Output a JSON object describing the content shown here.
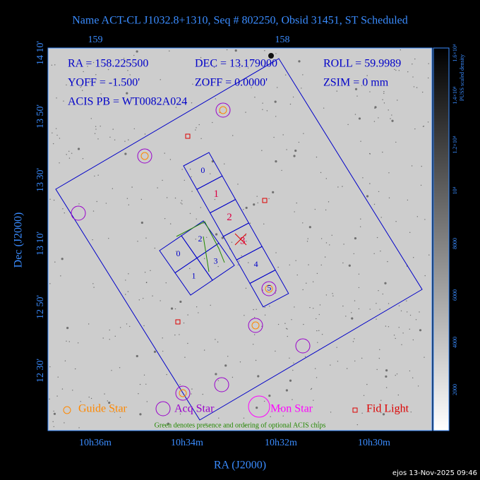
{
  "title": "Name ACT-CL J1032.8+1310, Seq # 802250, Obsid 31451, ST Scheduled",
  "info": [
    "RA = 158.225500",
    "DEC = 13.179000",
    "ROLL = 59.9989",
    "YOFF = -1.500'",
    "ZOFF = 0.0000'",
    "ZSIM = 0 mm",
    "ACIS PB = WT0082A024"
  ],
  "top_ticks": [
    "159",
    "158"
  ],
  "left_ticks": [
    "14 10'",
    "13 50'",
    "13 30'",
    "13 10'",
    "12 50'",
    "12 30'"
  ],
  "bottom_ticks": [
    "10h36m",
    "10h34m",
    "10h32m",
    "10h30m"
  ],
  "x_label": "RA (J2000)",
  "y_label": "Dec (J2000)",
  "colorbar": {
    "label": "PUSS scaled density",
    "ticks": [
      "1.6×10⁴",
      "1.4×10⁴",
      "1.2×10⁴",
      "10⁴",
      "8000",
      "6000",
      "4000",
      "2000"
    ]
  },
  "acis_s_chips": [
    "0",
    "1",
    "2",
    "3",
    "4",
    "5"
  ],
  "acis_i_chips": [
    "0",
    "1",
    "2",
    "3"
  ],
  "legend": [
    "Guide Star",
    "Acq Star",
    "Mon Star",
    "Fid Light"
  ],
  "note": "Green denotes presence and ordering of optional ACIS chips",
  "footer": "ejos 13-Nov-2025 09:46"
}
